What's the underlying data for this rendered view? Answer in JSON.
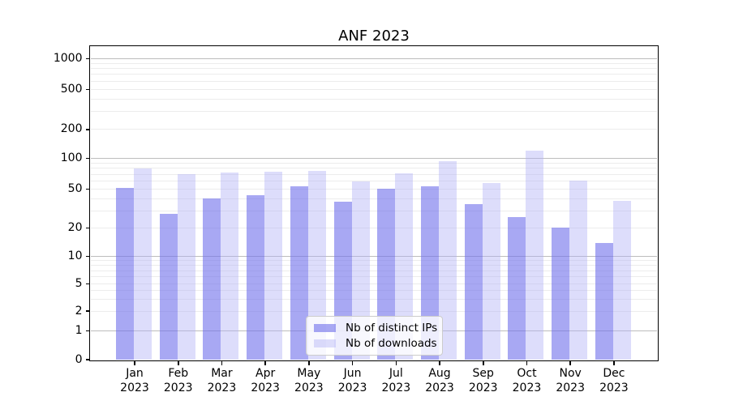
{
  "title": "ANF 2023",
  "chart_data": {
    "type": "bar",
    "title": "ANF 2023",
    "categories": [
      "Jan 2023",
      "Feb 2023",
      "Mar 2023",
      "Apr 2023",
      "May 2023",
      "Jun 2023",
      "Jul 2023",
      "Aug 2023",
      "Sep 2023",
      "Oct 2023",
      "Nov 2023",
      "Dec 2023"
    ],
    "series": [
      {
        "name": "Nb of distinct IPs",
        "color": "rgba(110,110,235,0.60)",
        "values": [
          51,
          28,
          40,
          43,
          53,
          37,
          50,
          53,
          35,
          26,
          20,
          14
        ]
      },
      {
        "name": "Nb of downloads",
        "color": "rgba(175,175,245,0.42)",
        "values": [
          80,
          70,
          73,
          74,
          76,
          59,
          72,
          94,
          57,
          120,
          60,
          38
        ]
      }
    ],
    "xlabel": "",
    "ylabel": "",
    "y_ticks": [
      0,
      1,
      2,
      5,
      10,
      20,
      50,
      100,
      200,
      500,
      1000
    ],
    "y_tick_labels": [
      "0",
      "1",
      "2",
      "5",
      "10",
      "20",
      "50",
      "100",
      "200",
      "500",
      "1000"
    ],
    "y_scale": "symlog",
    "ylim": [
      0,
      1400
    ],
    "grid": "horizontal major and minor gridlines",
    "legend_position": "lower center"
  }
}
